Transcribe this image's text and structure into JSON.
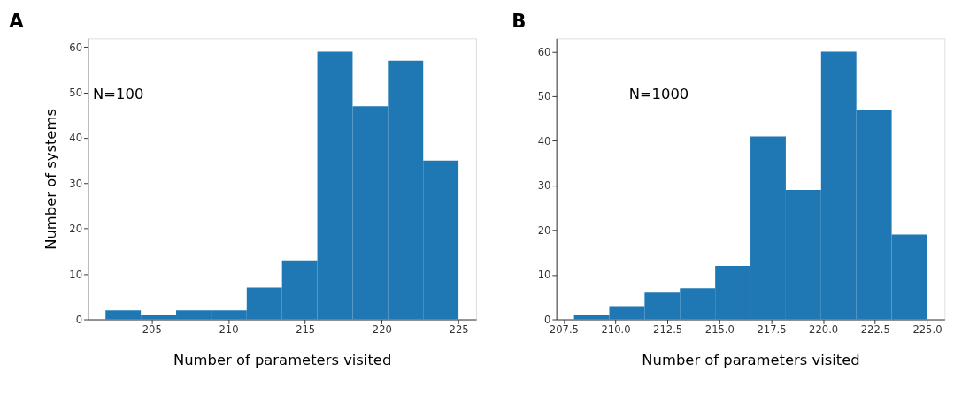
{
  "chart_data": [
    {
      "type": "histogram",
      "title": "A",
      "xlabel": "Number of parameters visited",
      "ylabel": "Number of systems",
      "bins": [
        202,
        204.3,
        206.6,
        208.9,
        211.2,
        213.5,
        215.8,
        218.1,
        220.4,
        222.7,
        225
      ],
      "values": [
        2,
        1,
        2,
        2,
        7,
        13,
        59,
        47,
        57,
        35
      ],
      "color": "#1f77b4",
      "xlim": [
        200.85,
        226.15
      ],
      "ylim": [
        0,
        61.95
      ],
      "xticks": [
        205,
        210,
        215,
        220,
        225
      ],
      "yticks": [
        0,
        10,
        20,
        30,
        40,
        50,
        60
      ],
      "annotations": [
        "N=100"
      ]
    },
    {
      "type": "histogram",
      "title": "B",
      "xlabel": "Number of parameters visited",
      "bins": [
        208,
        209.7,
        211.4,
        213.1,
        214.8,
        216.5,
        218.2,
        219.9,
        221.6,
        223.3,
        225
      ],
      "values": [
        1,
        3,
        6,
        7,
        12,
        41,
        29,
        60,
        47,
        19
      ],
      "color": "#1f77b4",
      "xlim": [
        207.15,
        225.85
      ],
      "ylim": [
        0,
        63
      ],
      "xticks": [
        {
          "value": 207.5,
          "label": "207.5"
        },
        {
          "value": 210,
          "label": "210.0"
        },
        {
          "value": 212.5,
          "label": "212.5"
        },
        {
          "value": 215,
          "label": "215.0"
        },
        {
          "value": 217.5,
          "label": "217.5"
        },
        {
          "value": 220,
          "label": "220.0"
        },
        {
          "value": 222.5,
          "label": "222.5"
        },
        {
          "value": 225,
          "label": "225.0"
        }
      ],
      "yticks": [
        0,
        10,
        20,
        30,
        40,
        50,
        60
      ],
      "annotations": [
        "N=1000"
      ]
    }
  ]
}
